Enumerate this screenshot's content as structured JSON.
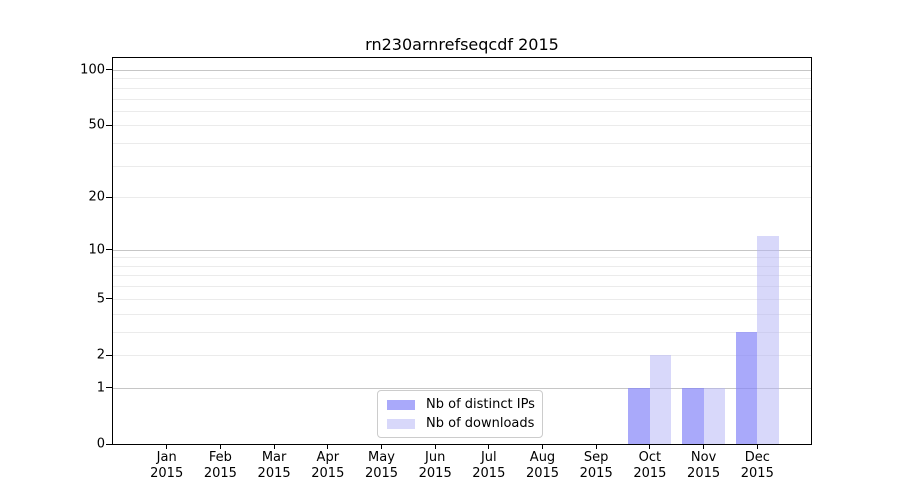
{
  "chart_data": {
    "type": "bar",
    "title": "rn230arnrefseqcdf 2015",
    "year_label": "2015",
    "categories": [
      "Jan",
      "Feb",
      "Mar",
      "Apr",
      "May",
      "Jun",
      "Jul",
      "Aug",
      "Sep",
      "Oct",
      "Nov",
      "Dec"
    ],
    "series": [
      {
        "name": "Nb of distinct IPs",
        "color": "rgba(132,132,248,0.70)",
        "values": [
          0,
          0,
          0,
          0,
          0,
          0,
          0,
          0,
          0,
          1,
          1,
          3
        ]
      },
      {
        "name": "Nb of downloads",
        "color": "rgba(177,177,245,0.50)",
        "values": [
          0,
          0,
          0,
          0,
          0,
          0,
          0,
          0,
          0,
          2,
          1,
          12
        ]
      }
    ],
    "y_ticks": [
      0,
      1,
      2,
      5,
      10,
      20,
      50,
      100
    ],
    "scale": "log1p",
    "ylim": [
      0,
      116
    ],
    "gridlines": {
      "minor": [
        2,
        3,
        4,
        5,
        6,
        7,
        8,
        9,
        20,
        30,
        40,
        50,
        60,
        70,
        80,
        90
      ],
      "major": [
        1,
        10,
        100
      ]
    },
    "legend_position": "lower center",
    "colors": {
      "axis": "#000000",
      "grid_minor": "#ebebeb",
      "grid_major": "#c6c6c6",
      "background": "#ffffff",
      "legend_border": "#cccccc"
    }
  }
}
